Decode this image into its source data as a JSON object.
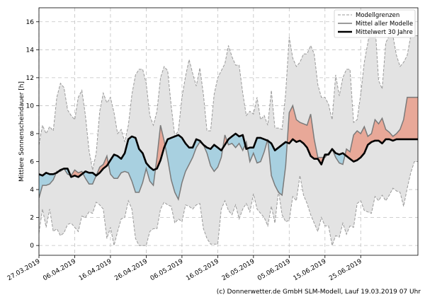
{
  "chart_data": {
    "type": "area",
    "title": "",
    "xlabel": "",
    "ylabel": "Mittlere Sonnenscheindauer [h]",
    "ylim": [
      -0.7,
      17.0
    ],
    "y_ticks": [
      0,
      2,
      4,
      6,
      8,
      10,
      12,
      14,
      16
    ],
    "x_range": [
      0,
      106
    ],
    "x_tick_positions": [
      0,
      10,
      20,
      30,
      40,
      50,
      60,
      70,
      80,
      90
    ],
    "x_tick_labels": [
      "27.03.2019",
      "06.04.2019",
      "16.04.2019",
      "26.04.2019",
      "06.05.2019",
      "16.05.2019",
      "26.05.2019",
      "05.06.2019",
      "15.06.2019",
      "25.06.2019"
    ],
    "grid": true,
    "legend_position": "top-right",
    "legend": [
      {
        "label": "Modellgrenzen",
        "style": "dashed-gray"
      },
      {
        "label": "Mittel aller Modelle",
        "style": "solid-gray"
      },
      {
        "label": "Mittelwert 30 Jahre",
        "style": "solid-black-thick"
      }
    ],
    "colors": {
      "range_fill": "#e3e3e3",
      "range_edge": "#9a9a9a",
      "model_mean_line": "#7a7a7a",
      "climate_mean_line": "#000000",
      "above_fill": "#e8a898",
      "below_fill": "#a8d0e0",
      "grid": "#c0c0c0"
    },
    "series": [
      {
        "name": "Modellgrenzen (oben)",
        "x": [
          0,
          1,
          2,
          3,
          4,
          5,
          6,
          7,
          8,
          9,
          10,
          11,
          12,
          13,
          14,
          15,
          16,
          17,
          18,
          19,
          20,
          21,
          22,
          23,
          24,
          25,
          26,
          27,
          28,
          29,
          30,
          31,
          32,
          33,
          34,
          35,
          36,
          37,
          38,
          39,
          40,
          41,
          42,
          43,
          44,
          45,
          46,
          47,
          48,
          49,
          50,
          51,
          52,
          53,
          54,
          55,
          56,
          57,
          58,
          59,
          60,
          61,
          62,
          63,
          64,
          65,
          66,
          67,
          68,
          69,
          70,
          71,
          72,
          73,
          74,
          75,
          76,
          77,
          78,
          79,
          80,
          81,
          82,
          83,
          84,
          85,
          86,
          87,
          88,
          89,
          90,
          91,
          92,
          93,
          94,
          95,
          96,
          97,
          98,
          99,
          100,
          101,
          102,
          103,
          104,
          105,
          106
        ],
        "values": [
          7.2,
          8.6,
          8.0,
          8.5,
          8.2,
          10.6,
          11.6,
          11.3,
          9.7,
          9.3,
          9.0,
          10.6,
          11.1,
          9.3,
          6.8,
          5.4,
          6.6,
          9.6,
          10.9,
          10.2,
          10.6,
          9.5,
          8.0,
          8.3,
          7.4,
          8.6,
          10.8,
          12.2,
          12.6,
          12.6,
          11.6,
          9.3,
          8.6,
          9.6,
          12.0,
          12.8,
          12.5,
          10.0,
          7.8,
          8.2,
          10.6,
          12.1,
          13.3,
          12.3,
          11.4,
          12.7,
          10.8,
          8.2,
          8.2,
          10.8,
          12.0,
          12.5,
          13.0,
          14.3,
          13.5,
          12.9,
          12.9,
          10.9,
          9.3,
          9.6,
          9.4,
          10.6,
          9.0,
          9.3,
          8.6,
          11.1,
          8.4,
          8.4,
          8.3,
          10.9,
          14.9,
          13.4,
          12.8,
          13.1,
          13.7,
          13.7,
          14.3,
          13.7,
          11.5,
          10.6,
          10.6,
          10.1,
          9.0,
          12.2,
          10.7,
          12.0,
          12.6,
          12.6,
          8.8,
          9.0,
          10.8,
          13.1,
          14.5,
          15.9,
          15.9,
          11.8,
          11.2,
          14.5,
          15.0,
          15.0,
          13.6,
          12.8,
          13.1,
          13.6,
          15.0,
          15.0,
          15.0
        ]
      },
      {
        "name": "Modellgrenzen (unten)",
        "x": [
          0,
          1,
          2,
          3,
          4,
          5,
          6,
          7,
          8,
          9,
          10,
          11,
          12,
          13,
          14,
          15,
          16,
          17,
          18,
          19,
          20,
          21,
          22,
          23,
          24,
          25,
          26,
          27,
          28,
          29,
          30,
          31,
          32,
          33,
          34,
          35,
          36,
          37,
          38,
          39,
          40,
          41,
          42,
          43,
          44,
          45,
          46,
          47,
          48,
          49,
          50,
          51,
          52,
          53,
          54,
          55,
          56,
          57,
          58,
          59,
          60,
          61,
          62,
          63,
          64,
          65,
          66,
          67,
          68,
          69,
          70,
          71,
          72,
          73,
          74,
          75,
          76,
          77,
          78,
          79,
          80,
          81,
          82,
          83,
          84,
          85,
          86,
          87,
          88,
          89,
          90,
          91,
          92,
          93,
          94,
          95,
          96,
          97,
          98,
          99,
          100,
          101,
          102,
          103,
          104,
          105,
          106
        ],
        "values": [
          0.9,
          2.6,
          1.3,
          2.6,
          1.0,
          1.2,
          0.7,
          0.9,
          1.5,
          1.6,
          1.3,
          1.0,
          2.1,
          2.0,
          2.4,
          2.3,
          3.1,
          2.9,
          2.6,
          0.5,
          1.3,
          0.0,
          1.0,
          1.9,
          2.0,
          3.2,
          2.6,
          0.5,
          0.0,
          0.0,
          0.0,
          1.0,
          1.2,
          1.2,
          2.6,
          3.1,
          2.9,
          2.8,
          1.6,
          1.9,
          1.7,
          2.9,
          2.8,
          2.6,
          2.9,
          3.0,
          1.2,
          0.5,
          0.1,
          0.1,
          0.1,
          2.6,
          3.2,
          2.5,
          2.2,
          2.9,
          1.9,
          2.6,
          3.0,
          2.4,
          3.7,
          2.6,
          2.3,
          2.0,
          1.4,
          2.8,
          1.6,
          3.9,
          2.2,
          1.7,
          1.8,
          3.5,
          3.2,
          5.0,
          3.6,
          3.0,
          2.2,
          1.6,
          1.0,
          2.0,
          1.4,
          1.4,
          0.0,
          0.7,
          0.6,
          1.6,
          0.8,
          1.4,
          1.3,
          3.0,
          3.2,
          2.5,
          2.4,
          2.3,
          3.5,
          3.2,
          3.6,
          3.2,
          3.6,
          4.1,
          3.9,
          3.8,
          2.8,
          4.1,
          5.2,
          6.0,
          6.0
        ]
      },
      {
        "name": "Mittel aller Modelle",
        "x": [
          0,
          1,
          2,
          3,
          4,
          5,
          6,
          7,
          8,
          9,
          10,
          11,
          12,
          13,
          14,
          15,
          16,
          17,
          18,
          19,
          20,
          21,
          22,
          23,
          24,
          25,
          26,
          27,
          28,
          29,
          30,
          31,
          32,
          33,
          34,
          35,
          36,
          37,
          38,
          39,
          40,
          41,
          42,
          43,
          44,
          45,
          46,
          47,
          48,
          49,
          50,
          51,
          52,
          53,
          54,
          55,
          56,
          57,
          58,
          59,
          60,
          61,
          62,
          63,
          64,
          65,
          66,
          67,
          68,
          69,
          70,
          71,
          72,
          73,
          74,
          75,
          76,
          77,
          78,
          79,
          80,
          81,
          82,
          83,
          84,
          85,
          86,
          87,
          88,
          89,
          90,
          91,
          92,
          93,
          94,
          95,
          96,
          97,
          98,
          99,
          100,
          101,
          102,
          103,
          104,
          105,
          106
        ],
        "values": [
          3.4,
          4.3,
          4.3,
          4.4,
          4.7,
          5.3,
          5.3,
          5.5,
          5.1,
          5.0,
          5.4,
          5.2,
          5.3,
          4.8,
          4.4,
          4.4,
          5.0,
          5.6,
          5.8,
          6.4,
          5.1,
          4.8,
          4.8,
          5.2,
          5.3,
          5.2,
          4.6,
          3.8,
          3.8,
          4.5,
          5.5,
          4.6,
          4.3,
          6.3,
          8.6,
          7.5,
          6.2,
          4.7,
          3.8,
          3.3,
          4.5,
          5.3,
          5.8,
          6.3,
          7.0,
          7.4,
          7.2,
          6.6,
          5.7,
          5.3,
          5.6,
          6.3,
          7.9,
          7.2,
          7.3,
          7.0,
          7.3,
          6.8,
          7.4,
          6.0,
          6.6,
          5.9,
          6.0,
          6.7,
          7.6,
          5.0,
          4.3,
          3.8,
          3.6,
          5.7,
          9.5,
          10.0,
          9.0,
          8.8,
          8.7,
          8.6,
          9.4,
          7.6,
          6.3,
          6.3,
          6.3,
          6.6,
          6.9,
          6.3,
          5.9,
          5.8,
          6.9,
          6.7,
          7.9,
          8.2,
          8.0,
          8.5,
          7.8,
          8.0,
          9.0,
          8.7,
          9.1,
          8.3,
          8.1,
          7.8,
          8.0,
          8.3,
          9.0,
          10.6,
          10.6,
          10.6,
          10.6
        ]
      },
      {
        "name": "Mittelwert 30 Jahre",
        "x": [
          0,
          1,
          2,
          3,
          4,
          5,
          6,
          7,
          8,
          9,
          10,
          11,
          12,
          13,
          14,
          15,
          16,
          17,
          18,
          19,
          20,
          21,
          22,
          23,
          24,
          25,
          26,
          27,
          28,
          29,
          30,
          31,
          32,
          33,
          34,
          35,
          36,
          37,
          38,
          39,
          40,
          41,
          42,
          43,
          44,
          45,
          46,
          47,
          48,
          49,
          50,
          51,
          52,
          53,
          54,
          55,
          56,
          57,
          58,
          59,
          60,
          61,
          62,
          63,
          64,
          65,
          66,
          67,
          68,
          69,
          70,
          71,
          72,
          73,
          74,
          75,
          76,
          77,
          78,
          79,
          80,
          81,
          82,
          83,
          84,
          85,
          86,
          87,
          88,
          89,
          90,
          91,
          92,
          93,
          94,
          95,
          96,
          97,
          98,
          99,
          100,
          101,
          102,
          103,
          104,
          105,
          106
        ],
        "values": [
          5.1,
          5.0,
          5.2,
          5.1,
          5.1,
          5.2,
          5.4,
          5.5,
          5.5,
          4.9,
          5.0,
          4.9,
          5.1,
          5.3,
          5.2,
          5.2,
          5.0,
          5.2,
          5.5,
          5.7,
          6.1,
          6.5,
          6.4,
          6.2,
          6.6,
          7.6,
          7.8,
          7.7,
          6.9,
          6.6,
          5.9,
          5.6,
          5.4,
          5.5,
          6.1,
          7.0,
          7.6,
          7.7,
          7.8,
          7.9,
          7.7,
          7.3,
          7.0,
          7.0,
          7.6,
          7.5,
          7.2,
          7.0,
          6.9,
          7.2,
          7.0,
          6.8,
          7.2,
          7.6,
          7.8,
          8.0,
          7.8,
          7.9,
          6.9,
          7.0,
          7.0,
          7.7,
          7.7,
          7.6,
          7.5,
          7.3,
          6.8,
          7.0,
          7.2,
          7.4,
          7.3,
          7.6,
          7.4,
          7.5,
          7.3,
          7.0,
          6.4,
          6.2,
          6.2,
          5.8,
          6.5,
          6.5,
          6.9,
          6.6,
          6.5,
          6.6,
          6.4,
          6.2,
          6.0,
          6.1,
          6.3,
          6.6,
          7.2,
          7.4,
          7.5,
          7.5,
          7.3,
          7.6,
          7.6,
          7.5,
          7.6,
          7.6,
          7.6,
          7.6,
          7.6,
          7.6,
          7.6
        ]
      }
    ],
    "credit": "(c) Donnerwetter.de GmbH SLM-Modell, Lauf 19.03.2019 07 Uhr"
  }
}
